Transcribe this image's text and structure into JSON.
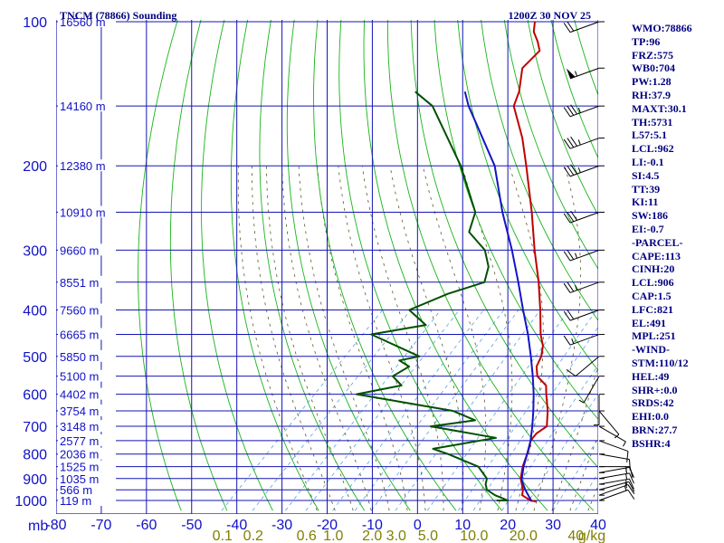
{
  "header": {
    "station": "TNCM (78866) Sounding",
    "time": "1200Z 30 NOV 25"
  },
  "chart_data": {
    "type": "skew-t log-p sounding",
    "pressure_axis": {
      "ticks": [
        100,
        200,
        300,
        400,
        500,
        600,
        700,
        800,
        900,
        1000
      ],
      "range_mb": [
        100,
        1050
      ],
      "unit_label": "mb",
      "scale": "log"
    },
    "temperature_axis": {
      "ticks": [
        -80,
        -70,
        -60,
        -50,
        -40,
        -30,
        -20,
        -10,
        0,
        10,
        20,
        30,
        40
      ],
      "tick_labels": [
        "-80",
        "-70",
        "-60",
        "-50",
        "-40",
        "-30",
        "-20",
        "-10",
        "0",
        "10",
        "20",
        "30",
        "40"
      ]
    },
    "height_labels": [
      {
        "p": 100,
        "label": "16560 m"
      },
      {
        "p": 150,
        "label": "14160 m"
      },
      {
        "p": 200,
        "label": "12380 m"
      },
      {
        "p": 250,
        "label": "10910 m"
      },
      {
        "p": 300,
        "label": "9660 m"
      },
      {
        "p": 350,
        "label": "8551 m"
      },
      {
        "p": 400,
        "label": "7560 m"
      },
      {
        "p": 450,
        "label": "6665 m"
      },
      {
        "p": 500,
        "label": "5850 m"
      },
      {
        "p": 550,
        "label": "5100 m"
      },
      {
        "p": 600,
        "label": "4402 m"
      },
      {
        "p": 650,
        "label": "3754 m"
      },
      {
        "p": 700,
        "label": "3148 m"
      },
      {
        "p": 750,
        "label": "2577 m"
      },
      {
        "p": 800,
        "label": "2036 m"
      },
      {
        "p": 850,
        "label": "1525 m"
      },
      {
        "p": 900,
        "label": "1035 m"
      },
      {
        "p": 950,
        "label": "566 m"
      },
      {
        "p": 1000,
        "label": "119 m"
      }
    ],
    "mixing_ratio_labels": [
      "0.1",
      "0.2",
      "0.6",
      "1.0",
      "2.0",
      "3.0",
      "5.0",
      "10.0",
      "20.0",
      "40",
      "g/kg"
    ],
    "mixing_ratio_values": [
      0.1,
      0.2,
      0.6,
      1.0,
      2.0,
      3.0,
      5.0,
      10.0,
      20.0,
      40.0
    ],
    "series": [
      {
        "name": "temperature",
        "color": "#c00000",
        "points": [
          {
            "p": 1005,
            "t": 26.5
          },
          {
            "p": 1000,
            "t": 25.0
          },
          {
            "p": 975,
            "t": 22.0
          },
          {
            "p": 950,
            "t": 21.0
          },
          {
            "p": 925,
            "t": 19.5
          },
          {
            "p": 900,
            "t": 18.0
          },
          {
            "p": 850,
            "t": 15.8
          },
          {
            "p": 800,
            "t": 14.0
          },
          {
            "p": 775,
            "t": 13.0
          },
          {
            "p": 750,
            "t": 11.8
          },
          {
            "p": 725,
            "t": 11.5
          },
          {
            "p": 700,
            "t": 12.2
          },
          {
            "p": 650,
            "t": 9.0
          },
          {
            "p": 600,
            "t": 5.0
          },
          {
            "p": 575,
            "t": 3.0
          },
          {
            "p": 550,
            "t": -1.0
          },
          {
            "p": 525,
            "t": -3.3
          },
          {
            "p": 500,
            "t": -4.5
          },
          {
            "p": 475,
            "t": -6.5
          },
          {
            "p": 450,
            "t": -9.5
          },
          {
            "p": 400,
            "t": -15.0
          },
          {
            "p": 350,
            "t": -21.5
          },
          {
            "p": 300,
            "t": -29.5
          },
          {
            "p": 250,
            "t": -38.5
          },
          {
            "p": 200,
            "t": -50.0
          },
          {
            "p": 175,
            "t": -57.0
          },
          {
            "p": 150,
            "t": -66.0
          },
          {
            "p": 140,
            "t": -68.0
          },
          {
            "p": 125,
            "t": -72.5
          },
          {
            "p": 115,
            "t": -72.5
          },
          {
            "p": 110,
            "t": -75.0
          },
          {
            "p": 105,
            "t": -78.0
          },
          {
            "p": 100,
            "t": -80.0
          }
        ]
      },
      {
        "name": "dewpoint",
        "color": "#005000",
        "points": [
          {
            "p": 1000,
            "t": 17.5
          },
          {
            "p": 1000,
            "t": 20.0
          },
          {
            "p": 975,
            "t": 16.0
          },
          {
            "p": 950,
            "t": 13.0
          },
          {
            "p": 925,
            "t": 11.5
          },
          {
            "p": 900,
            "t": 10.5
          },
          {
            "p": 850,
            "t": 6.0
          },
          {
            "p": 800,
            "t": -3.5
          },
          {
            "p": 780,
            "t": -8.0
          },
          {
            "p": 740,
            "t": 3.5
          },
          {
            "p": 700,
            "t": -13.5
          },
          {
            "p": 680,
            "t": -5.0
          },
          {
            "p": 650,
            "t": -12.0
          },
          {
            "p": 600,
            "t": -37.0
          },
          {
            "p": 575,
            "t": -29.0
          },
          {
            "p": 550,
            "t": -33.0
          },
          {
            "p": 525,
            "t": -31.5
          },
          {
            "p": 510,
            "t": -35.0
          },
          {
            "p": 500,
            "t": -31.5
          },
          {
            "p": 450,
            "t": -47.0
          },
          {
            "p": 430,
            "t": -37.0
          },
          {
            "p": 400,
            "t": -44.0
          },
          {
            "p": 370,
            "t": -39.0
          },
          {
            "p": 350,
            "t": -33.5
          },
          {
            "p": 325,
            "t": -36.0
          },
          {
            "p": 300,
            "t": -40.5
          },
          {
            "p": 275,
            "t": -48.0
          },
          {
            "p": 250,
            "t": -51.0
          },
          {
            "p": 200,
            "t": -64.5
          },
          {
            "p": 150,
            "t": -84.0
          },
          {
            "p": 140,
            "t": -91.0
          }
        ]
      },
      {
        "name": "parcel",
        "color": "#1414c8",
        "points": [
          {
            "p": 1005,
            "t": 25.5
          },
          {
            "p": 950,
            "t": 21.5
          },
          {
            "p": 906,
            "t": 18.5
          },
          {
            "p": 850,
            "t": 16.0
          },
          {
            "p": 800,
            "t": 14.0
          },
          {
            "p": 750,
            "t": 11.8
          },
          {
            "p": 700,
            "t": 9.0
          },
          {
            "p": 650,
            "t": 5.8
          },
          {
            "p": 600,
            "t": 2.2
          },
          {
            "p": 550,
            "t": -2.0
          },
          {
            "p": 500,
            "t": -6.8
          },
          {
            "p": 450,
            "t": -12.3
          },
          {
            "p": 400,
            "t": -18.8
          },
          {
            "p": 350,
            "t": -26.0
          },
          {
            "p": 300,
            "t": -34.5
          },
          {
            "p": 250,
            "t": -45.0
          },
          {
            "p": 200,
            "t": -57.0
          },
          {
            "p": 150,
            "t": -76.0
          },
          {
            "p": 140,
            "t": -80.0
          }
        ]
      }
    ],
    "wind_barbs_kt": [
      {
        "p": 1000,
        "dir": 70,
        "spd": 10
      },
      {
        "p": 975,
        "dir": 70,
        "spd": 15
      },
      {
        "p": 950,
        "dir": 75,
        "spd": 15
      },
      {
        "p": 925,
        "dir": 80,
        "spd": 15
      },
      {
        "p": 900,
        "dir": 80,
        "spd": 15
      },
      {
        "p": 875,
        "dir": 80,
        "spd": 15
      },
      {
        "p": 850,
        "dir": 90,
        "spd": 15
      },
      {
        "p": 800,
        "dir": 100,
        "spd": 10
      },
      {
        "p": 750,
        "dir": 110,
        "spd": 10
      },
      {
        "p": 700,
        "dir": 120,
        "spd": 5
      },
      {
        "p": 650,
        "dir": 140,
        "spd": 5
      },
      {
        "p": 600,
        "dir": 180,
        "spd": 5
      },
      {
        "p": 550,
        "dir": 210,
        "spd": 5
      },
      {
        "p": 500,
        "dir": 230,
        "spd": 10
      },
      {
        "p": 450,
        "dir": 250,
        "spd": 15
      },
      {
        "p": 400,
        "dir": 250,
        "spd": 20
      },
      {
        "p": 350,
        "dir": 250,
        "spd": 25
      },
      {
        "p": 300,
        "dir": 250,
        "spd": 25
      },
      {
        "p": 250,
        "dir": 250,
        "spd": 30
      },
      {
        "p": 200,
        "dir": 250,
        "spd": 35
      },
      {
        "p": 175,
        "dir": 250,
        "spd": 35
      },
      {
        "p": 150,
        "dir": 250,
        "spd": 35
      },
      {
        "p": 125,
        "dir": 250,
        "spd": 55
      },
      {
        "p": 100,
        "dir": 250,
        "spd": 20
      }
    ]
  },
  "indices": [
    "WMO:78866",
    "TP:96",
    "FRZ:575",
    "WB0:704",
    "PW:1.28",
    "RH:37.9",
    "MAXT:30.1",
    "TH:5731",
    "L57:5.1",
    "LCL:962",
    "LI:-0.1",
    "SI:4.5",
    "TT:39",
    "KI:11",
    "SW:186",
    "EI:-0.7",
    "-PARCEL-",
    "CAPE:113",
    "CINH:20",
    "LCL:906",
    "CAP:1.5",
    "LFC:821",
    "EL:491",
    "MPL:251",
    "-WIND-",
    "STM:110/12",
    "HEL:49",
    "SHR+:0.0",
    "SRDS:42",
    "EHI:0.0",
    "BRN:27.7",
    "BSHR:4"
  ]
}
